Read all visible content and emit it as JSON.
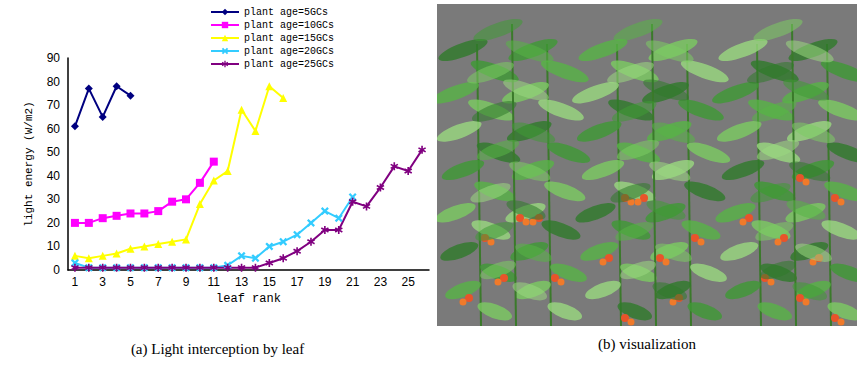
{
  "chart_data": {
    "type": "line",
    "title": "(a) Light interception by leaf",
    "x_label": "leaf rank",
    "y_label": "light energy (W/m2)",
    "categories": [
      1,
      null,
      3,
      null,
      5,
      null,
      7,
      null,
      9,
      null,
      11,
      null,
      13,
      null,
      15,
      null,
      17,
      null,
      19,
      null,
      21,
      null,
      23,
      null,
      25,
      null
    ],
    "series": [
      {
        "name": "plant age=5GCs",
        "color": "#000080",
        "marker": "diamond",
        "values": [
          61,
          77,
          65,
          78,
          74,
          null,
          null,
          null,
          null,
          null,
          null,
          null,
          null,
          null,
          null,
          null,
          null,
          null,
          null,
          null,
          null,
          null,
          null,
          null,
          null,
          null
        ]
      },
      {
        "name": "plant age=10GCs",
        "color": "#ff00ff",
        "marker": "square",
        "values": [
          20,
          20,
          22,
          23,
          24,
          24,
          25,
          29,
          30,
          37,
          46,
          null,
          null,
          null,
          null,
          null,
          null,
          null,
          null,
          null,
          null,
          null,
          null,
          null,
          null,
          null
        ]
      },
      {
        "name": "plant age=15GCs",
        "color": "#ffff00",
        "marker": "triangle",
        "values": [
          6,
          5,
          6,
          7,
          9,
          10,
          11,
          12,
          13,
          28,
          38,
          42,
          68,
          59,
          78,
          73,
          null,
          null,
          null,
          null,
          null,
          null,
          null,
          null,
          null,
          null
        ]
      },
      {
        "name": "plant age=20GCs",
        "color": "#33ccff",
        "marker": "x",
        "values": [
          3,
          1,
          1,
          1,
          1,
          1,
          1,
          1,
          1,
          1,
          1,
          2,
          6,
          5,
          10,
          12,
          15,
          20,
          25,
          22,
          31,
          null,
          null,
          null,
          null,
          null
        ]
      },
      {
        "name": "plant age=25GCs",
        "color": "#800080",
        "marker": "star",
        "values": [
          1,
          1,
          1,
          1,
          1,
          1,
          1,
          1,
          1,
          1,
          1,
          1,
          1,
          1,
          3,
          5,
          8,
          12,
          17,
          17,
          29,
          27,
          35,
          44,
          42,
          51
        ]
      }
    ],
    "ylim": [
      0,
      90
    ],
    "yticks": [
      0,
      10,
      20,
      30,
      40,
      50,
      60,
      70,
      80,
      90
    ],
    "grid": false,
    "legend": "upper right"
  },
  "visualization": {
    "caption": "(b) visualization"
  }
}
